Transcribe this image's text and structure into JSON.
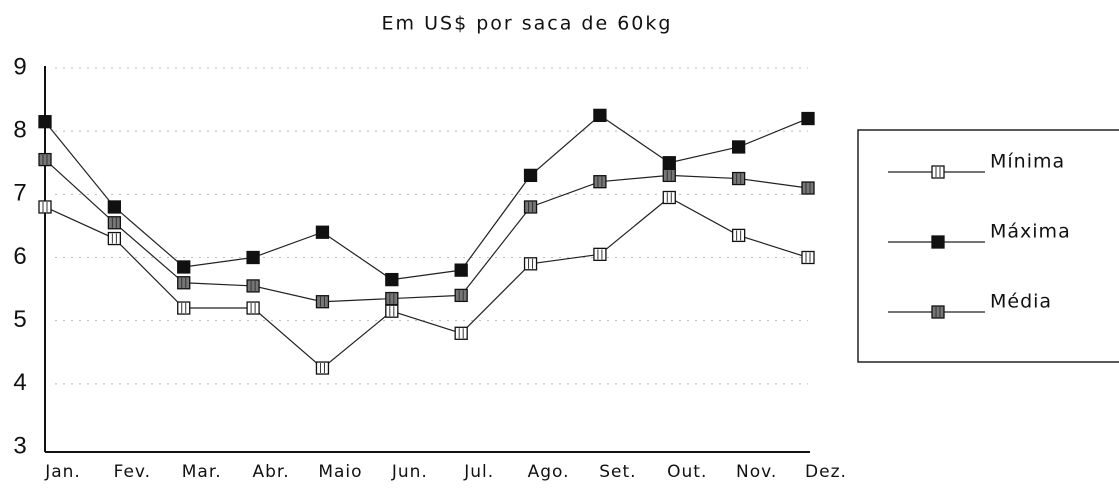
{
  "chart_data": {
    "type": "line",
    "title": "Em US$ por saca de 60kg",
    "categories": [
      "Jan.",
      "Fev.",
      "Mar.",
      "Abr.",
      "Maio",
      "Jun.",
      "Jul.",
      "Ago.",
      "Set.",
      "Out.",
      "Nov.",
      "Dez."
    ],
    "series": [
      {
        "name": "Mínima",
        "color": "#ffffff",
        "values": [
          6.8,
          6.3,
          5.2,
          5.2,
          4.25,
          5.15,
          4.8,
          5.9,
          6.05,
          6.95,
          6.35,
          6.0
        ]
      },
      {
        "name": "Máxima",
        "color": "#111111",
        "values": [
          8.15,
          6.8,
          5.85,
          6.0,
          6.4,
          5.65,
          5.8,
          7.3,
          8.25,
          7.5,
          7.75,
          8.2
        ]
      },
      {
        "name": "Média",
        "color": "#777777",
        "values": [
          7.55,
          6.55,
          5.6,
          5.55,
          5.3,
          5.35,
          5.4,
          6.8,
          7.2,
          7.3,
          7.25,
          7.1
        ]
      }
    ],
    "ylim": [
      3,
      9
    ],
    "yticks": [
      3,
      4,
      5,
      6,
      7,
      8,
      9
    ],
    "grid": true
  }
}
